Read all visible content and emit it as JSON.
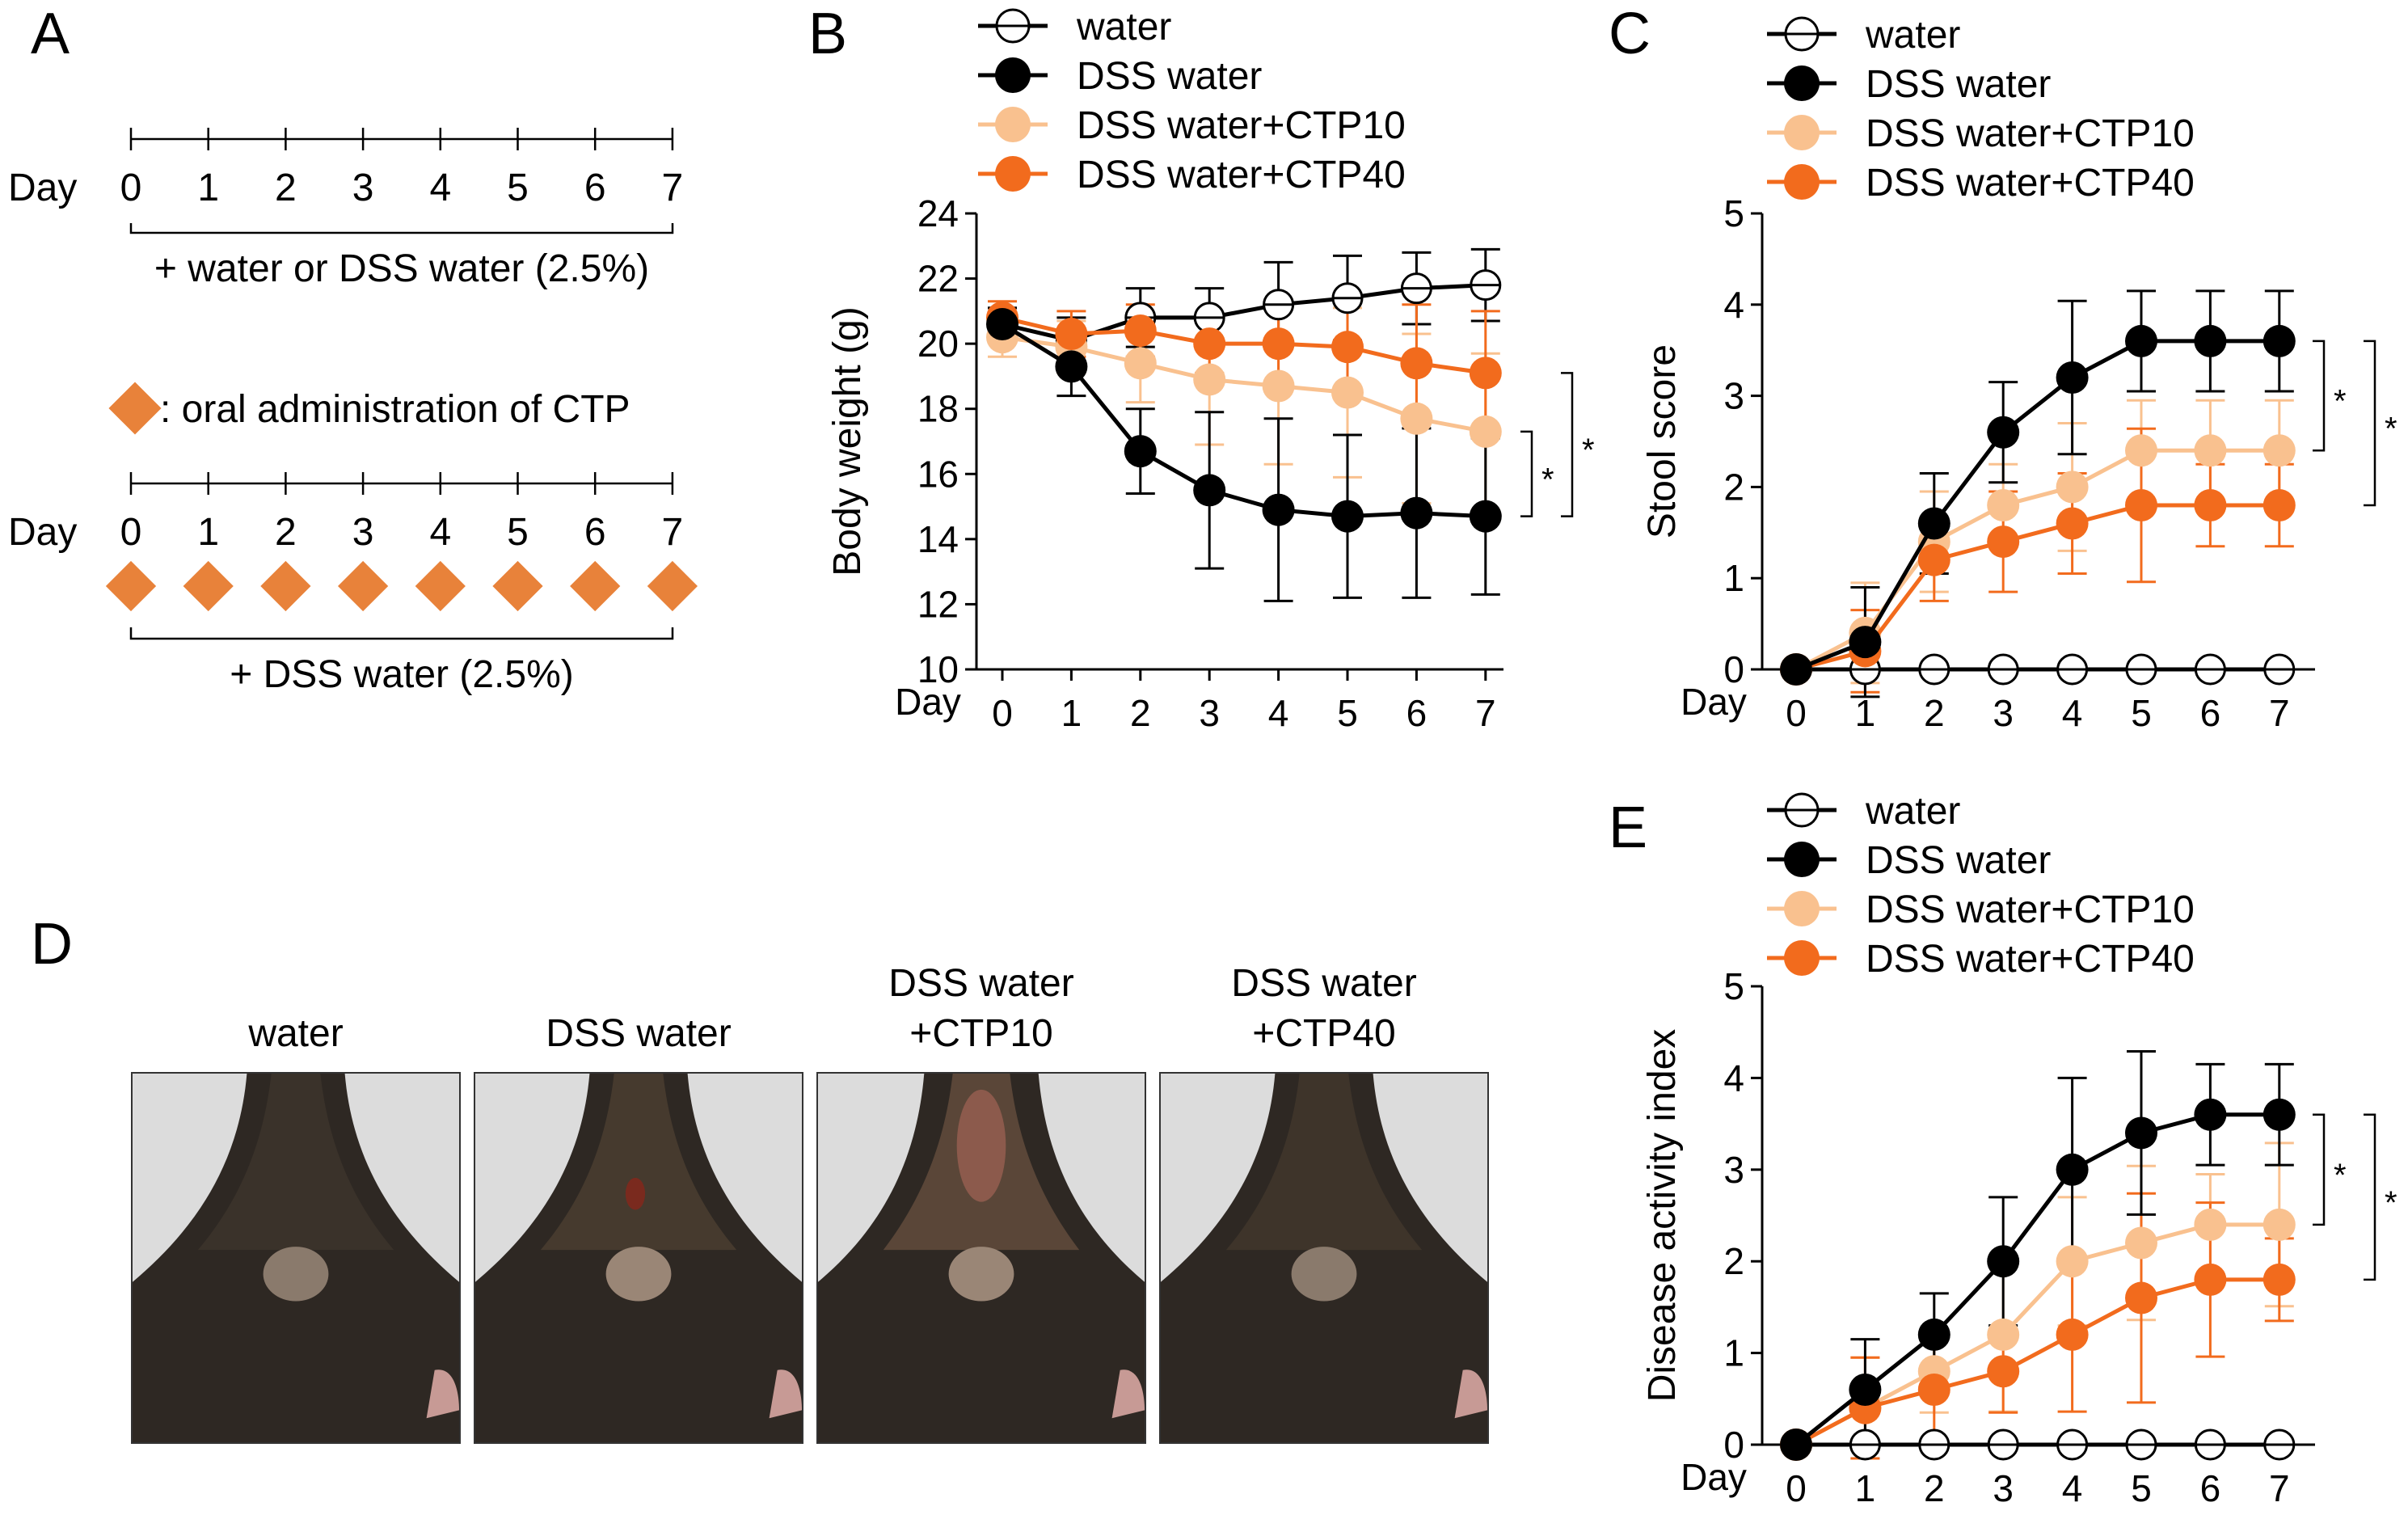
{
  "figure": {
    "panel_a": {
      "label": "A",
      "timeline1": {
        "day_label": "Day",
        "days": [
          "0",
          "1",
          "2",
          "3",
          "4",
          "5",
          "6",
          "7"
        ],
        "caption": "+ water or DSS water (2.5%)"
      },
      "legend_text": ": oral administration  of CTP",
      "timeline2": {
        "day_label": "Day",
        "days": [
          "0",
          "1",
          "2",
          "3",
          "4",
          "5",
          "6",
          "7"
        ],
        "caption": "+ DSS water (2.5%)"
      },
      "diamond_color": "#E8823A"
    },
    "panel_d": {
      "label": "D",
      "photos": [
        {
          "label_lines": [
            "water"
          ]
        },
        {
          "label_lines": [
            "DSS water"
          ]
        },
        {
          "label_lines": [
            "DSS water",
            "+CTP10"
          ]
        },
        {
          "label_lines": [
            "DSS water",
            "+CTP40"
          ]
        }
      ]
    }
  },
  "chart_data": [
    {
      "panel": "B",
      "type": "line",
      "ylabel": "Body weight (g)",
      "xlabel": "Day",
      "x": [
        0,
        1,
        2,
        3,
        4,
        5,
        6,
        7
      ],
      "ylim": [
        10,
        24
      ],
      "yticks": [
        10,
        12,
        14,
        16,
        18,
        20,
        22,
        24
      ],
      "significance": [
        "*",
        "*"
      ],
      "series": [
        {
          "name": "water",
          "style": "open",
          "color": "#000000",
          "values": [
            20.6,
            20.1,
            20.8,
            20.8,
            21.2,
            21.4,
            21.7,
            21.8
          ],
          "errors": [
            0.5,
            0.7,
            0.9,
            0.9,
            1.3,
            1.3,
            1.1,
            1.1
          ]
        },
        {
          "name": "DSS water",
          "style": "filled",
          "color": "#000000",
          "values": [
            20.6,
            19.3,
            16.7,
            15.5,
            14.9,
            14.7,
            14.8,
            14.7
          ],
          "errors": [
            0.5,
            0.9,
            1.3,
            2.4,
            2.8,
            2.5,
            2.6,
            2.4
          ]
        },
        {
          "name": "DSS water+CTP10",
          "style": "filled",
          "color": "#F9C18F",
          "values": [
            20.2,
            19.9,
            19.4,
            18.9,
            18.7,
            18.5,
            17.7,
            17.3
          ],
          "errors": [
            0.6,
            0.8,
            1.2,
            2.0,
            2.4,
            2.6,
            2.6,
            2.4
          ]
        },
        {
          "name": "DSS water+CTP40",
          "style": "filled",
          "color": "#F26B1D",
          "values": [
            20.8,
            20.3,
            20.4,
            20.0,
            20.0,
            19.9,
            19.4,
            19.1
          ],
          "errors": [
            0.5,
            0.7,
            0.8,
            0.9,
            1.2,
            1.4,
            1.8,
            1.9
          ]
        }
      ]
    },
    {
      "panel": "C",
      "type": "line",
      "ylabel": "Stool score",
      "xlabel": "Day",
      "x": [
        0,
        1,
        2,
        3,
        4,
        5,
        6,
        7
      ],
      "ylim": [
        0,
        5
      ],
      "yticks": [
        0,
        1,
        2,
        3,
        4,
        5
      ],
      "significance": [
        "*",
        "*"
      ],
      "series": [
        {
          "name": "water",
          "style": "open",
          "color": "#000000",
          "values": [
            0,
            0,
            0,
            0,
            0,
            0,
            0,
            0
          ],
          "errors": [
            0,
            0,
            0,
            0,
            0,
            0,
            0,
            0
          ]
        },
        {
          "name": "DSS water",
          "style": "filled",
          "color": "#000000",
          "values": [
            0,
            0.3,
            1.6,
            2.6,
            3.2,
            3.6,
            3.6,
            3.6
          ],
          "errors": [
            0,
            0.6,
            0.55,
            0.55,
            0.84,
            0.55,
            0.55,
            0.55
          ]
        },
        {
          "name": "DSS water+CTP10",
          "style": "filled",
          "color": "#F9C18F",
          "values": [
            0,
            0.4,
            1.4,
            1.8,
            2.0,
            2.4,
            2.4,
            2.4
          ],
          "errors": [
            0,
            0.55,
            0.55,
            0.45,
            0.7,
            0.55,
            0.55,
            0.55
          ]
        },
        {
          "name": "DSS water+CTP40",
          "style": "filled",
          "color": "#F26B1D",
          "values": [
            0,
            0.2,
            1.2,
            1.4,
            1.6,
            1.8,
            1.8,
            1.8
          ],
          "errors": [
            0,
            0.45,
            0.45,
            0.55,
            0.55,
            0.84,
            0.45,
            0.45
          ]
        }
      ]
    },
    {
      "panel": "E",
      "type": "line",
      "ylabel": "Disease activity index",
      "xlabel": "Day",
      "x": [
        0,
        1,
        2,
        3,
        4,
        5,
        6,
        7
      ],
      "ylim": [
        0,
        5
      ],
      "yticks": [
        0,
        1,
        2,
        3,
        4,
        5
      ],
      "significance": [
        "*",
        "*"
      ],
      "series": [
        {
          "name": "water",
          "style": "open",
          "color": "#000000",
          "values": [
            0,
            0,
            0,
            0,
            0,
            0,
            0,
            0
          ],
          "errors": [
            0,
            0,
            0,
            0,
            0,
            0,
            0,
            0
          ]
        },
        {
          "name": "DSS water",
          "style": "filled",
          "color": "#000000",
          "values": [
            0,
            0.6,
            1.2,
            2.0,
            3.0,
            3.4,
            3.6,
            3.6
          ],
          "errors": [
            0,
            0.55,
            0.45,
            0.7,
            1.0,
            0.89,
            0.55,
            0.55
          ]
        },
        {
          "name": "DSS water+CTP10",
          "style": "filled",
          "color": "#F9C18F",
          "values": [
            0,
            0.4,
            0.8,
            1.2,
            2.0,
            2.2,
            2.4,
            2.4
          ],
          "errors": [
            0,
            0.55,
            0.45,
            0.84,
            0.7,
            0.84,
            0.55,
            0.89
          ]
        },
        {
          "name": "DSS water+CTP40",
          "style": "filled",
          "color": "#F26B1D",
          "values": [
            0,
            0.4,
            0.6,
            0.8,
            1.2,
            1.6,
            1.8,
            1.8
          ],
          "errors": [
            0,
            0.55,
            0.55,
            0.45,
            0.84,
            1.14,
            0.84,
            0.45
          ]
        }
      ]
    }
  ]
}
